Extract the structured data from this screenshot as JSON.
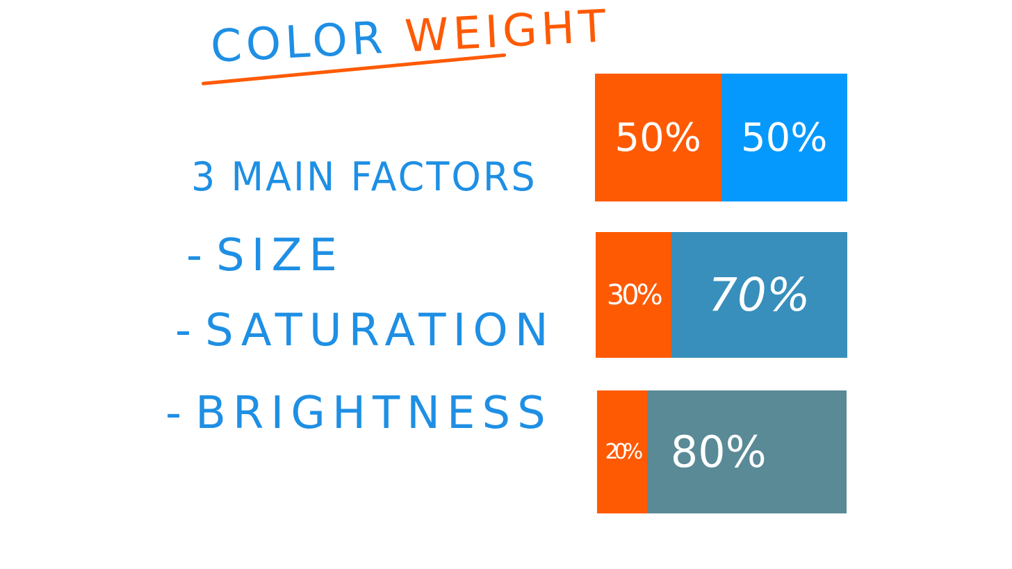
{
  "title": {
    "word1": "COLOR",
    "word2": "WEIGHT"
  },
  "subtitle": "3 MAIN FACTORS",
  "factors": [
    {
      "dash": "-",
      "label": "SIZE"
    },
    {
      "dash": "-",
      "label": "SATURATION"
    },
    {
      "dash": "-",
      "label": "BRIGHTNESS"
    }
  ],
  "colors": {
    "text_blue": "#1e8fe4",
    "accent_orange": "#fe5a04"
  },
  "bars": [
    {
      "left": {
        "label": "50%",
        "value": 50,
        "color": "#fe5a04"
      },
      "right": {
        "label": "50%",
        "value": 50,
        "color": "#0699fd"
      }
    },
    {
      "left": {
        "label": "30%",
        "value": 30,
        "color": "#fe5a04"
      },
      "right": {
        "label": "70%",
        "value": 70,
        "color": "#388fbc"
      }
    },
    {
      "left": {
        "label": "20%",
        "value": 20,
        "color": "#fe5a04"
      },
      "right": {
        "label": "80%",
        "value": 80,
        "color": "#598a96"
      }
    }
  ]
}
